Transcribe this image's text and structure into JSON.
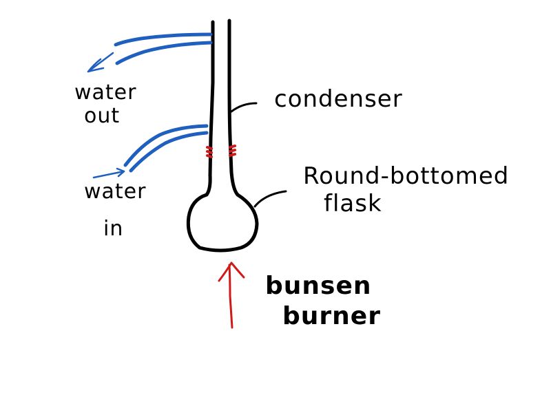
{
  "labels": {
    "water_out_1": "water",
    "water_out_2": "out",
    "water_in_1": "water",
    "water_in_2": "in",
    "condenser": "condenser",
    "flask_1": "Round-bottomed",
    "flask_2": "flask",
    "burner_1": "bunsen",
    "burner_2": "burner"
  },
  "colors": {
    "ink": "#000000",
    "water": "#1f5fbf",
    "heat": "#d01a1a",
    "clamp": "#d01a1a",
    "background": "#ffffff"
  },
  "icons": {
    "water_out_arrow": "arrow-left-down-icon",
    "water_in_arrow": "arrow-right-icon",
    "heat_arrow": "arrow-up-icon"
  }
}
